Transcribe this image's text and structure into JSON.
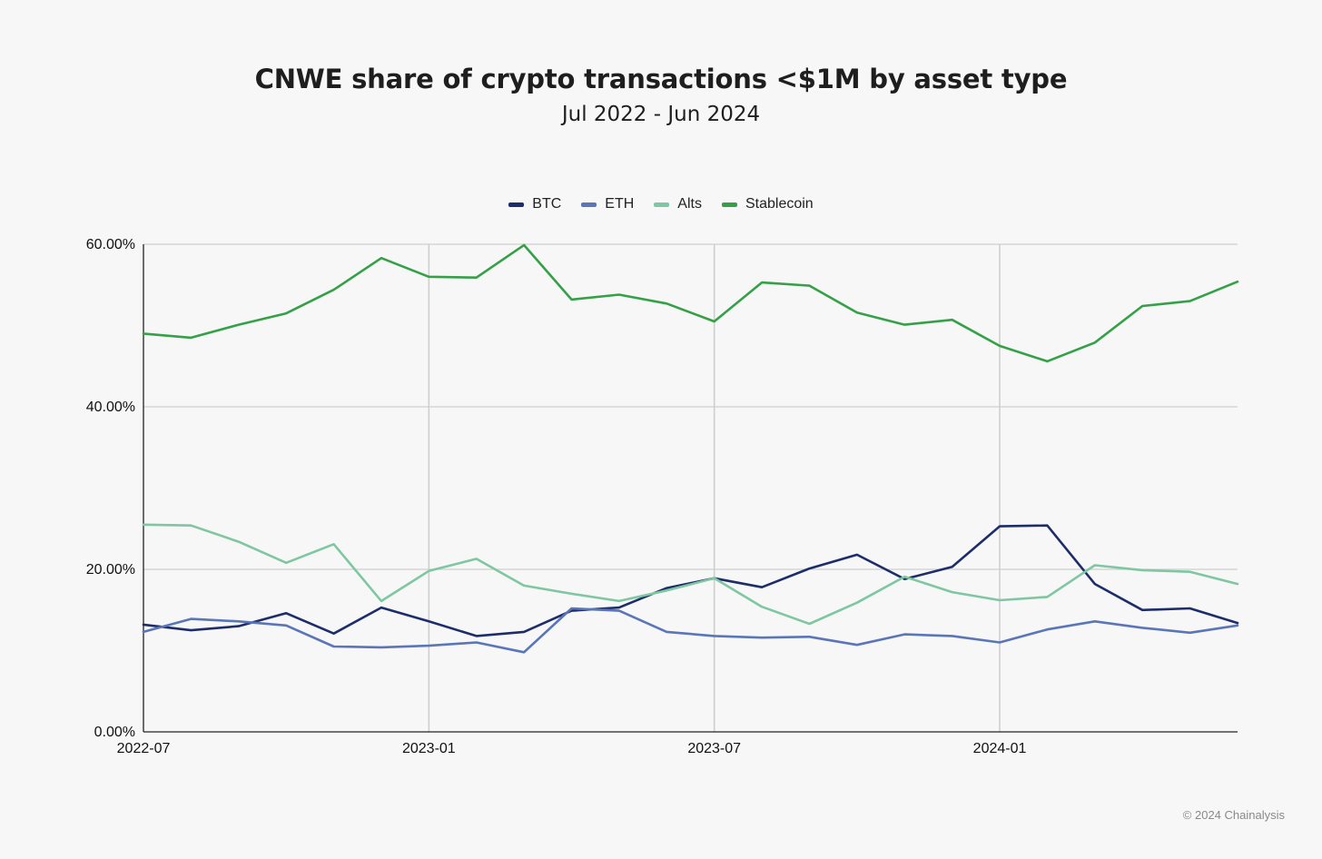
{
  "chart_data": {
    "type": "line",
    "title": "CNWE share of crypto transactions <$1M by asset type",
    "subtitle": "Jul 2022 - Jun 2024",
    "xlabel": "",
    "ylabel": "",
    "ylim": [
      0,
      60
    ],
    "y_ticks": [
      0,
      20,
      40,
      60
    ],
    "y_tick_labels": [
      "0.00%",
      "20.00%",
      "40.00%",
      "60.00%"
    ],
    "x": [
      "2022-07",
      "2022-08",
      "2022-09",
      "2022-10",
      "2022-11",
      "2022-12",
      "2023-01",
      "2023-02",
      "2023-03",
      "2023-04",
      "2023-05",
      "2023-06",
      "2023-07",
      "2023-08",
      "2023-09",
      "2023-10",
      "2023-11",
      "2023-12",
      "2024-01",
      "2024-02",
      "2024-03",
      "2024-04",
      "2024-05",
      "2024-06"
    ],
    "x_tick_labels": [
      "2022-07",
      "2023-01",
      "2023-07",
      "2024-01"
    ],
    "legend_position": "top-center",
    "series": [
      {
        "name": "BTC",
        "color": "#1c2d69",
        "values": [
          13.2,
          12.5,
          13.0,
          14.6,
          12.1,
          15.3,
          13.6,
          11.8,
          12.3,
          14.9,
          15.3,
          17.7,
          18.9,
          17.8,
          20.1,
          21.8,
          18.8,
          20.3,
          25.3,
          25.4,
          18.2,
          15.0,
          15.2,
          13.4
        ]
      },
      {
        "name": "ETH",
        "color": "#5a75b8",
        "values": [
          12.3,
          13.9,
          13.6,
          13.1,
          10.5,
          10.4,
          10.6,
          11.0,
          9.8,
          15.2,
          14.9,
          12.3,
          11.8,
          11.6,
          11.7,
          10.7,
          12.0,
          11.8,
          11.0,
          12.6,
          13.6,
          12.8,
          12.2,
          13.1
        ]
      },
      {
        "name": "Alts",
        "color": "#7fc6a2",
        "values": [
          25.5,
          25.4,
          23.4,
          20.8,
          23.1,
          16.1,
          19.8,
          21.3,
          18.0,
          17.0,
          16.1,
          17.4,
          18.9,
          15.4,
          13.3,
          15.9,
          19.1,
          17.2,
          16.2,
          16.6,
          20.5,
          19.9,
          19.7,
          18.2
        ]
      },
      {
        "name": "Stablecoin",
        "color": "#34a047",
        "values": [
          49.0,
          48.5,
          50.1,
          51.5,
          54.4,
          58.3,
          56.0,
          55.9,
          59.9,
          53.2,
          53.8,
          52.7,
          50.5,
          55.3,
          54.9,
          51.6,
          50.1,
          50.7,
          47.5,
          45.6,
          47.9,
          52.4,
          53.0,
          55.4
        ]
      }
    ]
  },
  "credit": "© 2024 Chainalysis"
}
